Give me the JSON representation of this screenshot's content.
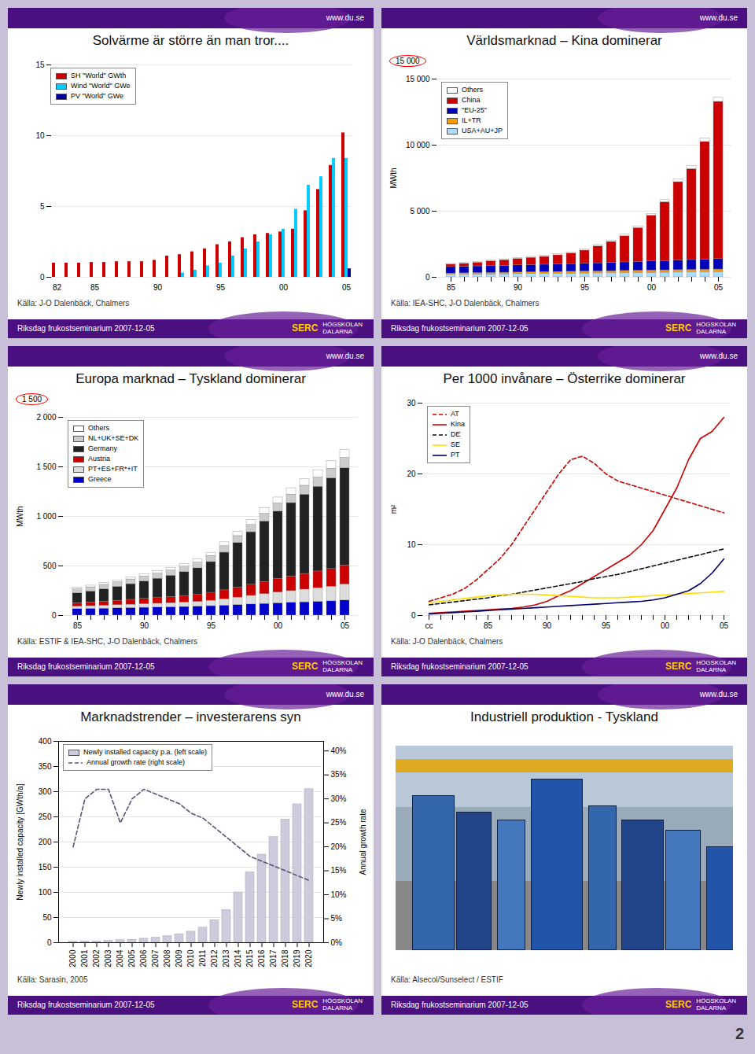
{
  "header_text": "www.du.se",
  "logo": [
    "SERC",
    "HÖGSKOLAN",
    "DALARNA"
  ],
  "page_number": "2",
  "chart_data": [
    {
      "type": "bar",
      "title": "Solvärme är större än man tror....",
      "caption": "Källa:  J-O Dalenbäck, Chalmers",
      "footer": "Riksdag frukostseminarium 2007-12-05",
      "categories": [
        "82",
        null,
        null,
        "85",
        null,
        null,
        null,
        null,
        "90",
        null,
        null,
        null,
        null,
        "95",
        null,
        null,
        null,
        null,
        "00",
        null,
        null,
        null,
        null,
        "05"
      ],
      "series": [
        {
          "name": "SH \"World\" GWth",
          "color": "#cc0000",
          "values": [
            1.0,
            1.0,
            1.0,
            1.05,
            1.05,
            1.1,
            1.1,
            1.1,
            1.2,
            1.5,
            1.6,
            1.8,
            2.0,
            2.3,
            2.5,
            2.8,
            3.0,
            3.1,
            3.2,
            3.4,
            4.7,
            6.2,
            7.9,
            10.2
          ]
        },
        {
          "name": "Wind \"World\" GWe",
          "color": "#00ccff",
          "values": [
            0,
            0,
            0,
            0,
            0,
            0,
            0,
            0,
            0,
            0,
            0.3,
            0.5,
            0.8,
            1.0,
            1.5,
            2.0,
            2.5,
            3.0,
            3.4,
            4.8,
            6.5,
            7.1,
            8.4,
            8.4
          ]
        },
        {
          "name": "PV \"World\" GWe",
          "color": "#000099",
          "values": [
            0,
            0,
            0,
            0,
            0,
            0,
            0,
            0,
            0,
            0,
            0,
            0,
            0,
            0,
            0,
            0,
            0,
            0,
            0,
            0,
            0,
            0,
            0,
            0.6
          ]
        }
      ],
      "ylim": [
        0,
        15
      ],
      "yticks": [
        0,
        5,
        10,
        15
      ],
      "grid": true,
      "legend": "upper left"
    },
    {
      "type": "bar",
      "stacked": true,
      "title": "Världsmarknad – Kina dominerar",
      "caption": "Källa: IEA-SHC, J-O Dalenbäck, Chalmers",
      "footer": "Riksdag frukostseminarium 2007-12-05",
      "annotations": [
        "15 000"
      ],
      "ylabel": "MWth",
      "categories": [
        "85",
        null,
        null,
        null,
        null,
        "90",
        null,
        null,
        null,
        null,
        "95",
        null,
        null,
        null,
        null,
        "00",
        null,
        null,
        null,
        null,
        "05"
      ],
      "series": [
        {
          "name": "USA+AU+JP",
          "color": "#aaddff",
          "values": [
            195,
            205,
            215,
            225,
            235,
            245,
            255,
            265,
            275,
            285,
            295,
            305,
            315,
            325,
            335,
            345,
            355,
            365,
            375,
            385,
            395
          ]
        },
        {
          "name": "IL+TR",
          "color": "#ff9900",
          "values": [
            95,
            100,
            105,
            110,
            115,
            120,
            125,
            130,
            135,
            140,
            145,
            150,
            155,
            160,
            165,
            170,
            175,
            180,
            185,
            190,
            195
          ]
        },
        {
          "name": "\"EU-25\"",
          "color": "#0000bb",
          "values": [
            490,
            500,
            510,
            520,
            530,
            540,
            550,
            560,
            570,
            580,
            595,
            610,
            630,
            650,
            670,
            690,
            710,
            730,
            750,
            770,
            790
          ]
        },
        {
          "name": "China",
          "color": "#cc0000",
          "values": [
            180,
            220,
            280,
            360,
            420,
            490,
            550,
            595,
            690,
            795,
            990,
            1285,
            1580,
            1970,
            2560,
            3460,
            4440,
            5930,
            6880,
            8900,
            11900
          ]
        },
        {
          "name": "Others",
          "color": "#ffffff",
          "values": [
            50,
            55,
            58,
            60,
            62,
            65,
            68,
            70,
            75,
            80,
            90,
            100,
            110,
            120,
            130,
            145,
            165,
            195,
            230,
            270,
            300
          ]
        }
      ],
      "ylim": [
        0,
        15000
      ],
      "yticks": [
        0,
        {
          "value": 5000,
          "label": "5 000"
        },
        {
          "value": 10000,
          "label": "10 000"
        },
        {
          "value": 15000,
          "label": "15 000"
        }
      ],
      "grid": true,
      "legend": "upper left"
    },
    {
      "type": "bar",
      "stacked": true,
      "title": "Europa marknad – Tyskland dominerar",
      "caption": "Källa: ESTIF & IEA-SHC, J-O Dalenbäck, Chalmers",
      "footer": "Riksdag frukostseminarium 2007-12-05",
      "annotations": [
        "1 500"
      ],
      "ylabel": "MWth",
      "categories": [
        "85",
        null,
        null,
        null,
        null,
        "90",
        null,
        null,
        null,
        null,
        "95",
        null,
        null,
        null,
        null,
        "00",
        null,
        null,
        null,
        null,
        "05"
      ],
      "series": [
        {
          "name": "Greece",
          "color": "#0000cc",
          "values": [
            65,
            68,
            70,
            73,
            76,
            79,
            81,
            84,
            87,
            90,
            95,
            100,
            106,
            112,
            118,
            124,
            129,
            134,
            139,
            144,
            152
          ]
        },
        {
          "name": "PT+ES+FR*+IT",
          "color": "#dddddd",
          "values": [
            25,
            27,
            29,
            32,
            34,
            37,
            39,
            42,
            45,
            48,
            55,
            65,
            76,
            87,
            98,
            109,
            118,
            128,
            138,
            148,
            162
          ]
        },
        {
          "name": "Austria",
          "color": "#cc0000",
          "values": [
            35,
            38,
            42,
            45,
            49,
            53,
            57,
            61,
            66,
            71,
            80,
            90,
            100,
            112,
            124,
            136,
            148,
            158,
            168,
            178,
            192
          ]
        },
        {
          "name": "Germany",
          "color": "#222222",
          "values": [
            100,
            110,
            125,
            140,
            158,
            175,
            195,
            215,
            240,
            268,
            310,
            380,
            450,
            530,
            610,
            680,
            740,
            800,
            855,
            915,
            980
          ]
        },
        {
          "name": "NL+UK+SE+DK",
          "color": "#cccccc",
          "values": [
            40,
            42,
            44,
            46,
            48,
            50,
            52,
            54,
            56,
            58,
            62,
            66,
            70,
            74,
            78,
            82,
            86,
            90,
            94,
            98,
            105
          ]
        },
        {
          "name": "Others",
          "color": "#ffffff",
          "values": [
            15,
            17,
            18,
            20,
            22,
            23,
            25,
            26,
            28,
            30,
            32,
            38,
            44,
            50,
            55,
            60,
            64,
            68,
            72,
            76,
            82
          ]
        }
      ],
      "ylim": [
        0,
        2000
      ],
      "yticks": [
        0,
        500,
        {
          "value": 1000,
          "label": "1 000"
        },
        {
          "value": 1500,
          "label": "1 500"
        },
        {
          "value": 2000,
          "label": "2 000"
        }
      ],
      "grid": true,
      "legend": "upper left"
    },
    {
      "type": "line",
      "title": "Per 1000 invånare – Österrike dominerar",
      "caption": "Källa: J-O Dalenbäck, Chalmers",
      "footer": "Riksdag frukostseminarium 2007-12-05",
      "ylabel": "m²",
      "categories": [
        "cc",
        null,
        null,
        null,
        null,
        "85",
        null,
        null,
        null,
        null,
        "90",
        null,
        null,
        null,
        null,
        "95",
        null,
        null,
        null,
        null,
        "00",
        null,
        null,
        null,
        null,
        "05"
      ],
      "series": [
        {
          "name": "AT",
          "color": "#cc0000",
          "line_style": "dashed",
          "values": [
            2.0,
            2.5,
            3.0,
            3.8,
            5.0,
            6.5,
            8.0,
            10.0,
            12.5,
            15.0,
            17.5,
            20.0,
            22.0,
            22.5,
            21.5,
            20.0,
            19.0,
            18.5,
            18.0,
            17.5,
            17.0,
            16.5,
            16.0,
            15.5,
            15.0,
            14.5
          ]
        },
        {
          "name": "Kina",
          "color": "#cc0000",
          "line_style": "solid",
          "values": [
            0.3,
            0.4,
            0.5,
            0.6,
            0.7,
            0.8,
            0.9,
            1.0,
            1.2,
            1.5,
            2.0,
            2.8,
            3.5,
            4.5,
            5.5,
            6.5,
            7.5,
            8.5,
            10.0,
            12.0,
            15.0,
            18.0,
            22.0,
            25.0,
            26.0,
            28.0
          ]
        },
        {
          "name": "DE",
          "color": "#111111",
          "line_style": "dashed",
          "values": [
            1.5,
            1.7,
            1.9,
            2.1,
            2.3,
            2.5,
            2.8,
            3.0,
            3.3,
            3.6,
            3.9,
            4.2,
            4.5,
            4.8,
            5.2,
            5.5,
            5.8,
            6.2,
            6.6,
            7.0,
            7.4,
            7.8,
            8.2,
            8.6,
            9.0,
            9.4
          ]
        },
        {
          "name": "SE",
          "color": "#ffdd00",
          "line_style": "solid",
          "values": [
            1.8,
            2.0,
            2.2,
            2.4,
            2.6,
            2.8,
            2.9,
            3.0,
            3.0,
            3.0,
            2.9,
            2.8,
            2.7,
            2.6,
            2.5,
            2.5,
            2.5,
            2.6,
            2.7,
            2.8,
            2.9,
            3.0,
            3.1,
            3.2,
            3.3,
            3.4
          ]
        },
        {
          "name": "PT",
          "color": "#000066",
          "line_style": "solid",
          "values": [
            0.2,
            0.3,
            0.4,
            0.5,
            0.6,
            0.7,
            0.8,
            0.9,
            1.0,
            1.1,
            1.2,
            1.3,
            1.4,
            1.5,
            1.6,
            1.7,
            1.8,
            1.9,
            2.0,
            2.2,
            2.5,
            3.0,
            3.5,
            4.5,
            6.0,
            8.0
          ]
        }
      ],
      "ylim": [
        0,
        30
      ],
      "yticks": [
        0,
        10,
        20,
        30
      ],
      "grid": true,
      "legend": "upper left"
    },
    {
      "type": "bar",
      "title": "Marknadstrender – investerarens syn",
      "caption": "Källa: Sarasin, 2005",
      "footer": "Riksdag frukostseminarium 2007-12-05",
      "ylabel": "Newly installed capacity [GWth/a]",
      "y2label": "Annual growth rate",
      "categories": [
        "2000",
        "2001",
        "2002",
        "2003",
        "2004",
        "2005",
        "2006",
        "2007",
        "2008",
        "2009",
        "2010",
        "2011",
        "2012",
        "2013",
        "2014",
        "2015",
        "2016",
        "2017",
        "2018",
        "2019",
        "2020"
      ],
      "series": [
        {
          "name": "Newly installed capacity p.a. (left scale)",
          "type": "bar",
          "color": "#ccccdd",
          "values": [
            2,
            3,
            3,
            4,
            5,
            6,
            8,
            10,
            13,
            17,
            22,
            30,
            45,
            65,
            100,
            140,
            175,
            210,
            245,
            275,
            305
          ]
        },
        {
          "name": "Annual growth rate (right scale)",
          "type": "line",
          "axis": "y2",
          "color": "#555577",
          "line_style": "dashed",
          "values": [
            0.2,
            0.3,
            0.32,
            0.32,
            0.25,
            0.3,
            0.32,
            0.31,
            0.3,
            0.29,
            0.27,
            0.26,
            0.24,
            0.22,
            0.2,
            0.18,
            0.17,
            0.16,
            0.15,
            0.14,
            0.13
          ]
        }
      ],
      "ylim": [
        0,
        400
      ],
      "yticks": [
        0,
        50,
        100,
        150,
        200,
        250,
        300,
        350,
        400
      ],
      "y2lim": [
        0,
        0.42
      ],
      "y2ticks": [
        {
          "value": 0,
          "label": "0%"
        },
        {
          "value": 0.05,
          "label": "5%"
        },
        {
          "value": 0.1,
          "label": "10%"
        },
        {
          "value": 0.15,
          "label": "15%"
        },
        {
          "value": 0.2,
          "label": "20%"
        },
        {
          "value": 0.25,
          "label": "25%"
        },
        {
          "value": 0.3,
          "label": "30%"
        },
        {
          "value": 0.35,
          "label": "35%"
        },
        {
          "value": 0.4,
          "label": "40%"
        }
      ],
      "grid": true,
      "legend": "upper left"
    },
    {
      "type": "image",
      "title": "Industriell produktion - Tyskland",
      "caption": "Källa: Alsecol/Sunselect / ESTIF",
      "footer": "Riksdag frukostseminarium 2007-12-05"
    }
  ]
}
